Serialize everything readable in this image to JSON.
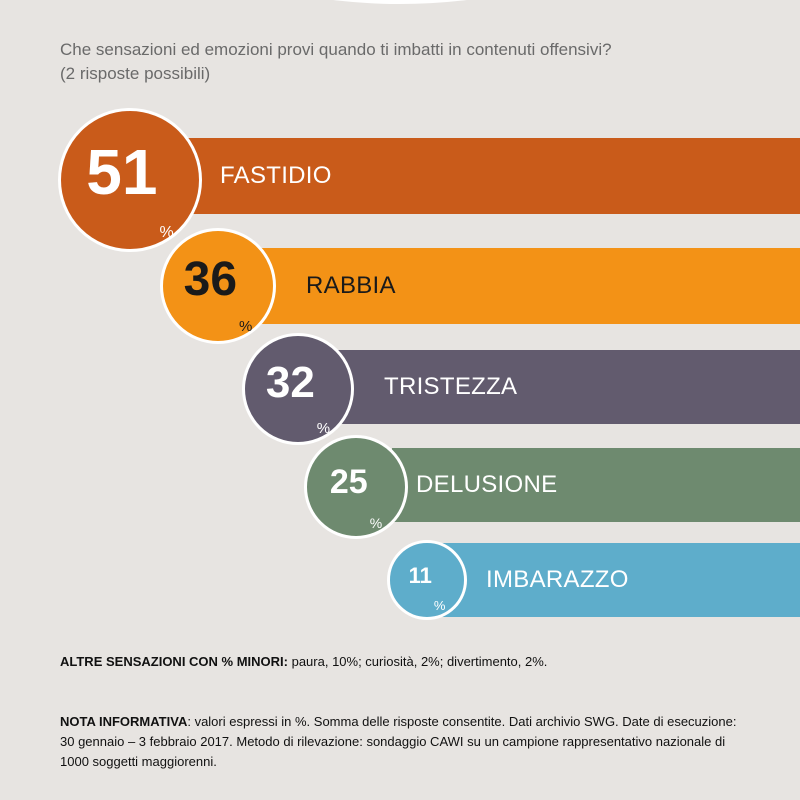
{
  "header": {
    "question_line1": "Che sensazioni ed emozioni provi quando ti imbatti in contenuti offensivi?",
    "question_line2": "(2 risposte possibili)"
  },
  "chart_data": {
    "type": "bar",
    "categories": [
      "FASTIDIO",
      "RABBIA",
      "TRISTEZZA",
      "DELUSIONE",
      "IMBARAZZO"
    ],
    "values": [
      51,
      36,
      32,
      25,
      11
    ],
    "unit": "%",
    "colors": [
      "#c95b1a",
      "#f39216",
      "#625b6e",
      "#6e8a6f",
      "#5eadcb"
    ],
    "label_colors": [
      "#ffffff",
      "#1a1a1a",
      "#ffffff",
      "#ffffff",
      "#ffffff"
    ]
  },
  "footer": {
    "other_title": "ALTRE SENSAZIONI CON % MINORI:",
    "other_text": " paura, 10%; curiosità, 2%; divertimento, 2%.",
    "note_title": "NOTA INFORMATIVA",
    "note_line1": ": valori espressi in %. Somma delle risposte consentite. Dati archivio SWG. Date di esecuzione:",
    "note_line2": "30 gennaio – 3 febbraio 2017. Metodo di rilevazione: sondaggio CAWI su un campione rappresentativo nazionale di",
    "note_line3": "1000 soggetti maggiorenni."
  }
}
